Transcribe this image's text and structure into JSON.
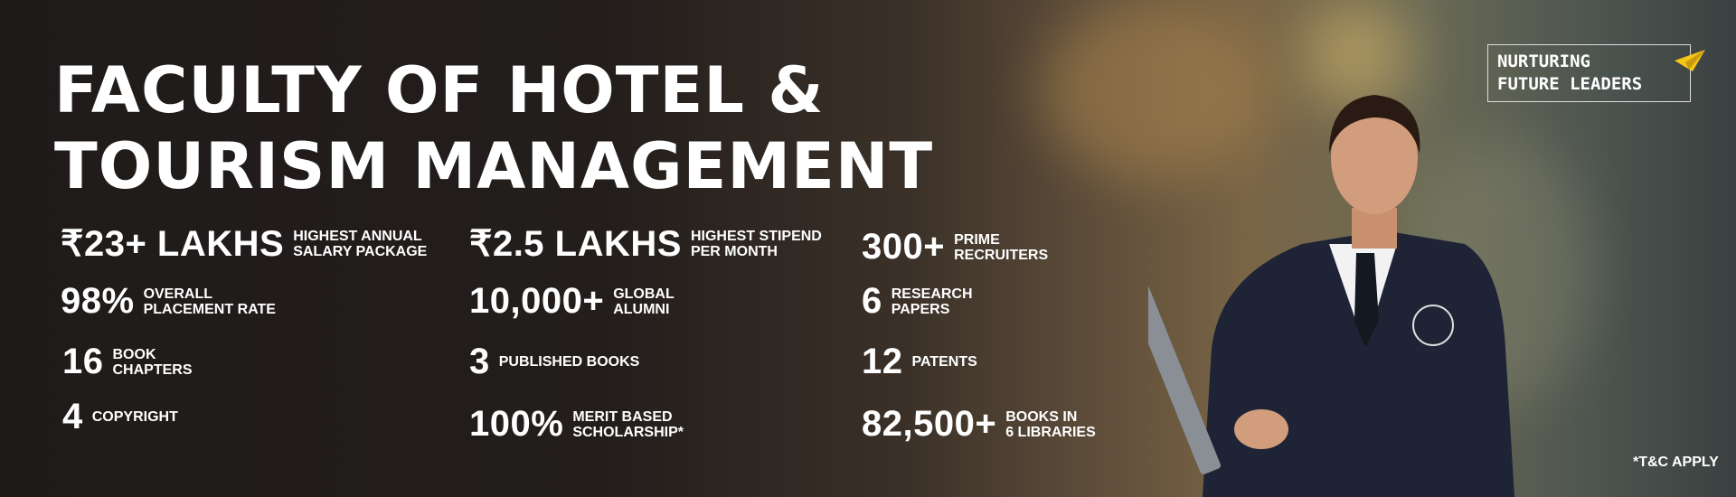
{
  "title_line1": "FACULTY OF HOTEL &",
  "title_line2": "TOURISM MANAGEMENT",
  "badge": "NURTURING\nFUTURE LEADERS",
  "stats": [
    {
      "value": "₹23+ LAKHS",
      "label": "HIGHEST ANNUAL\nSALARY PACKAGE"
    },
    {
      "value": "98%",
      "label": "OVERALL\nPLACEMENT RATE"
    },
    {
      "value": "16",
      "label": "BOOK\nCHAPTERS"
    },
    {
      "value": "4",
      "label": "COPYRIGHT"
    },
    {
      "value": "₹2.5 LAKHS",
      "label": "HIGHEST STIPEND\nPER MONTH"
    },
    {
      "value": "10,000+",
      "label": "GLOBAL\nALUMNI"
    },
    {
      "value": "3",
      "label": "PUBLISHED BOOKS"
    },
    {
      "value": "100%",
      "label": "MERIT BASED\nSCHOLARSHIP*"
    },
    {
      "value": "300+",
      "label": "PRIME\nRECRUITERS"
    },
    {
      "value": "6",
      "label": "RESEARCH\nPAPERS"
    },
    {
      "value": "12",
      "label": "PATENTS"
    },
    {
      "value": "82,500+",
      "label": "BOOKS IN\n6 LIBRARIES"
    }
  ],
  "footnote": "*T&C APPLY",
  "colors": {
    "accent": "#f5c518"
  }
}
